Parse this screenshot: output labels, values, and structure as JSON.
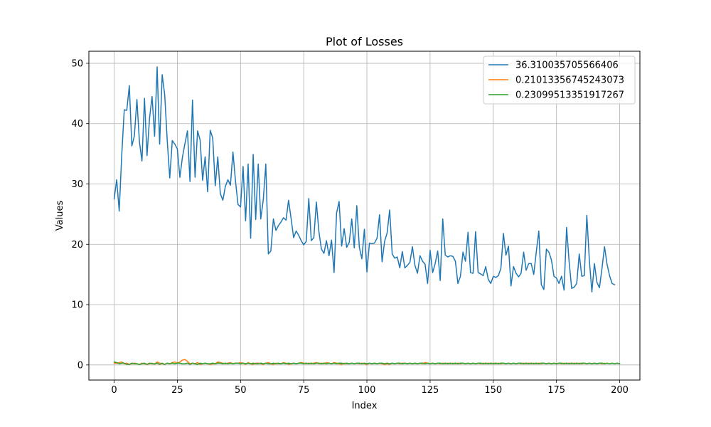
{
  "chart_data": {
    "type": "line",
    "title": "Plot of Losses",
    "xlabel": "Index",
    "ylabel": "Values",
    "xlim": [
      -10,
      208
    ],
    "ylim": [
      -2.5,
      52
    ],
    "xticks": [
      0,
      25,
      50,
      75,
      100,
      125,
      150,
      175,
      200
    ],
    "yticks": [
      0,
      10,
      20,
      30,
      40,
      50
    ],
    "grid": true,
    "legend_position": "upper right",
    "series": [
      {
        "name": "36.310035705566406",
        "color": "#1f77b4",
        "values": [
          27.5,
          30.7,
          25.5,
          34.8,
          42.3,
          42.2,
          46.3,
          36.3,
          38.0,
          44.0,
          37.0,
          33.8,
          44.2,
          34.7,
          40.9,
          44.5,
          37.9,
          49.4,
          36.6,
          48.1,
          44.8,
          37.2,
          31.0,
          37.2,
          36.6,
          35.8,
          31.1,
          34.4,
          36.7,
          38.8,
          30.4,
          43.9,
          31.1,
          38.8,
          37.3,
          30.6,
          34.5,
          28.7,
          38.9,
          37.6,
          29.7,
          34.5,
          28.4,
          27.3,
          29.6,
          30.7,
          29.8,
          35.3,
          30.5,
          26.6,
          26.2,
          32.9,
          23.9,
          33.3,
          21.0,
          34.9,
          24.1,
          33.3,
          24.2,
          27.4,
          33.3,
          18.4,
          18.9,
          24.2,
          22.3,
          23.1,
          23.7,
          24.4,
          24.0,
          27.3,
          24.3,
          21.1,
          22.2,
          21.5,
          20.6,
          19.9,
          20.5,
          27.6,
          20.6,
          21.1,
          27.0,
          22.1,
          19.2,
          18.5,
          20.6,
          18.1,
          20.7,
          15.3,
          25.2,
          27.1,
          19.7,
          22.6,
          19.5,
          20.3,
          24.2,
          19.4,
          26.4,
          19.5,
          17.6,
          22.5,
          15.4,
          20.2,
          20.1,
          20.2,
          21.0,
          24.9,
          17.1,
          20.5,
          21.9,
          25.7,
          18.4,
          17.7,
          17.9,
          16.1,
          18.8,
          16.1,
          16.5,
          17.0,
          19.6,
          16.5,
          15.2,
          18.1,
          17.2,
          16.7,
          13.5,
          19.0,
          15.3,
          16.8,
          18.9,
          14.0,
          24.2,
          18.2,
          17.9,
          18.1,
          18.0,
          17.2,
          13.5,
          14.7,
          18.7,
          17.2,
          22.0,
          15.3,
          15.2,
          22.1,
          15.3,
          15.1,
          14.8,
          16.3,
          14.2,
          13.5,
          14.7,
          14.5,
          14.8,
          16.0,
          21.8,
          18.2,
          19.7,
          13.1,
          16.3,
          15.2,
          14.6,
          15.2,
          18.7,
          15.7,
          16.8,
          16.8,
          15.0,
          18.7,
          22.2,
          13.3,
          12.5,
          19.2,
          18.7,
          17.4,
          14.7,
          14.4,
          13.5,
          14.7,
          12.4,
          22.8,
          17.1,
          12.7,
          12.9,
          13.5,
          18.4,
          14.7,
          14.8,
          24.8,
          17.4,
          12.1,
          16.8,
          13.7,
          12.8,
          16.0,
          19.6,
          16.7,
          14.8,
          13.5,
          13.3
        ]
      },
      {
        "name": "0.21013356745243073",
        "color": "#ff7f0e",
        "values": [
          0.3,
          0.3,
          0.4,
          0.5,
          0.2,
          0.3,
          0.1,
          0.2,
          0.3,
          0.2,
          0.1,
          0.3,
          0.2,
          0.1,
          0.2,
          0.3,
          0.1,
          0.5,
          0.3,
          0.2,
          0.1,
          0.3,
          0.2,
          0.4,
          0.5,
          0.3,
          0.5,
          0.8,
          0.9,
          0.6,
          0.2,
          0.3,
          0.2,
          0.4,
          0.1,
          0.2,
          0.3,
          0.2,
          0.1,
          0.2,
          0.2,
          0.5,
          0.4,
          0.3,
          0.2,
          0.3,
          0.4,
          0.2,
          0.3,
          0.3,
          0.4,
          0.3,
          0.1,
          0.4,
          0.2,
          0.1,
          0.3,
          0.3,
          0.2,
          0.1,
          0.3,
          0.4,
          0.2,
          0.1,
          0.3,
          0.2,
          0.2,
          0.4,
          0.3,
          0.1,
          0.2,
          0.3,
          0.2,
          0.3,
          0.4,
          0.3,
          0.2,
          0.3,
          0.2,
          0.3,
          0.4,
          0.2,
          0.3,
          0.2,
          0.4,
          0.3,
          0.2,
          0.4,
          0.3,
          0.2,
          0.1,
          0.3,
          0.2,
          0.2,
          0.3,
          0.2,
          0.3,
          0.2,
          0.3,
          0.2,
          0.1,
          0.3,
          0.2,
          0.3,
          0.2,
          0.3,
          0.2,
          0.1,
          0.2,
          0.1,
          0.3,
          0.2,
          0.3,
          0.2,
          0.3,
          0.3,
          0.2,
          0.3,
          0.2,
          0.3,
          0.2,
          0.3,
          0.2,
          0.4,
          0.3,
          0.2,
          0.3,
          0.2,
          0.3,
          0.2,
          0.3,
          0.2,
          0.3,
          0.2,
          0.3,
          0.2,
          0.3,
          0.2,
          0.3,
          0.2,
          0.3,
          0.2,
          0.3,
          0.2,
          0.3,
          0.2,
          0.3,
          0.2,
          0.3,
          0.2,
          0.3,
          0.2,
          0.3,
          0.2,
          0.3,
          0.2,
          0.3,
          0.2,
          0.3,
          0.2,
          0.3,
          0.2,
          0.3,
          0.2,
          0.3,
          0.2,
          0.3,
          0.2,
          0.3,
          0.2,
          0.3,
          0.2,
          0.3,
          0.2,
          0.3,
          0.2,
          0.3,
          0.2,
          0.3,
          0.2,
          0.3,
          0.2,
          0.3,
          0.2,
          0.3,
          0.2,
          0.3,
          0.2,
          0.3,
          0.2,
          0.3,
          0.2,
          0.3,
          0.2,
          0.3
        ]
      },
      {
        "name": "0.23099513351917267",
        "color": "#2ca02c",
        "values": [
          0.5,
          0.4,
          0.2,
          0.3,
          0.3,
          0.1,
          0.1,
          0.3,
          0.2,
          0.2,
          0.1,
          0.2,
          0.3,
          0.1,
          0.3,
          0.2,
          0.2,
          0.3,
          0.1,
          0.3,
          0.1,
          0.3,
          0.2,
          0.3,
          0.2,
          0.3,
          0.3,
          0.2,
          0.2,
          0.3,
          0.1,
          0.3,
          0.2,
          0.1,
          0.3,
          0.2,
          0.3,
          0.2,
          0.2,
          0.3,
          0.2,
          0.3,
          0.3,
          0.2,
          0.3,
          0.2,
          0.3,
          0.2,
          0.3,
          0.3,
          0.2,
          0.3,
          0.2,
          0.3,
          0.2,
          0.3,
          0.2,
          0.2,
          0.3,
          0.2,
          0.3,
          0.2,
          0.2,
          0.3,
          0.2,
          0.3,
          0.2,
          0.3,
          0.2,
          0.3,
          0.2,
          0.3,
          0.2,
          0.3,
          0.3,
          0.2,
          0.3,
          0.2,
          0.3,
          0.2,
          0.3,
          0.3,
          0.2,
          0.3,
          0.2,
          0.3,
          0.2,
          0.3,
          0.2,
          0.3,
          0.3,
          0.2,
          0.3,
          0.2,
          0.3,
          0.2,
          0.3,
          0.3,
          0.2,
          0.3,
          0.2,
          0.3,
          0.2,
          0.3,
          0.2,
          0.3,
          0.3,
          0.2,
          0.3,
          0.2,
          0.3,
          0.2,
          0.3,
          0.3,
          0.2,
          0.3,
          0.2,
          0.3,
          0.2,
          0.3,
          0.2,
          0.3,
          0.3,
          0.2,
          0.3,
          0.2,
          0.3,
          0.2,
          0.3,
          0.3,
          0.2,
          0.3,
          0.2,
          0.3,
          0.2,
          0.3,
          0.2,
          0.3,
          0.3,
          0.2,
          0.3,
          0.2,
          0.3,
          0.2,
          0.3,
          0.3,
          0.2,
          0.3,
          0.2,
          0.3,
          0.2,
          0.3,
          0.2,
          0.3,
          0.3,
          0.2,
          0.3,
          0.2,
          0.3,
          0.2,
          0.3,
          0.3,
          0.2,
          0.3,
          0.2,
          0.3,
          0.2,
          0.3,
          0.2,
          0.3,
          0.3,
          0.2,
          0.3,
          0.2,
          0.3,
          0.2,
          0.3,
          0.3,
          0.2,
          0.3,
          0.2,
          0.3,
          0.2,
          0.3,
          0.2,
          0.3,
          0.3,
          0.2,
          0.3,
          0.2,
          0.3,
          0.2,
          0.3,
          0.3,
          0.2,
          0.3,
          0.2,
          0.3,
          0.2,
          0.3,
          0.2
        ]
      }
    ]
  }
}
